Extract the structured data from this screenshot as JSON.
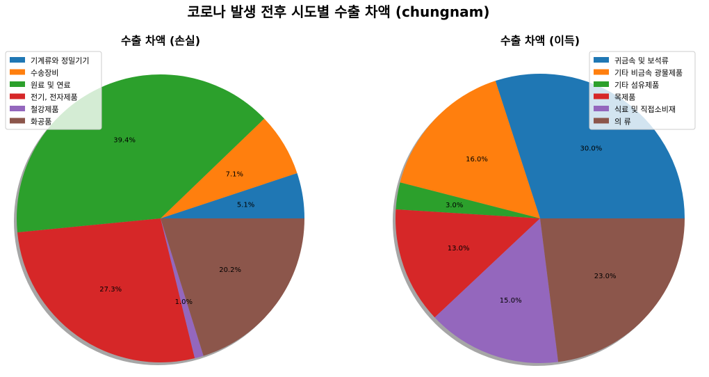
{
  "figure": {
    "title": "코로나 발생 전후 시도별 수출 차액 (chungnam)"
  },
  "chart_data": [
    {
      "type": "pie",
      "title": "수출 차액 (손실)",
      "legend_position": "upper-left",
      "shadow": true,
      "labels": [
        "기계류와 정밀기기",
        "수송장비",
        "원료 및 연료",
        "전기, 전자제품",
        "철강제품",
        "화공품"
      ],
      "values": [
        5.1,
        7.1,
        39.4,
        27.3,
        1.0,
        20.2
      ],
      "pct_labels": [
        "5.1%",
        "7.1%",
        "39.4%",
        "27.3%",
        "1.0%",
        "20.2%"
      ],
      "colors": [
        "#1f77b4",
        "#ff7f0e",
        "#2ca02c",
        "#d62728",
        "#9467bd",
        "#8c564b"
      ]
    },
    {
      "type": "pie",
      "title": "수출 차액 (이득)",
      "legend_position": "upper-right",
      "shadow": true,
      "labels": [
        "귀금속 및 보석류",
        "기타 비금속 광물제품",
        "기타 섬유제품",
        "목제품",
        "식료 및 직접소비재",
        "의 류"
      ],
      "values": [
        30.0,
        16.0,
        3.0,
        13.0,
        15.0,
        23.0
      ],
      "pct_labels": [
        "30.0%",
        "16.0%",
        "3.0%",
        "13.0%",
        "15.0%",
        "23.0%"
      ],
      "colors": [
        "#1f77b4",
        "#ff7f0e",
        "#2ca02c",
        "#d62728",
        "#9467bd",
        "#8c564b"
      ]
    }
  ]
}
